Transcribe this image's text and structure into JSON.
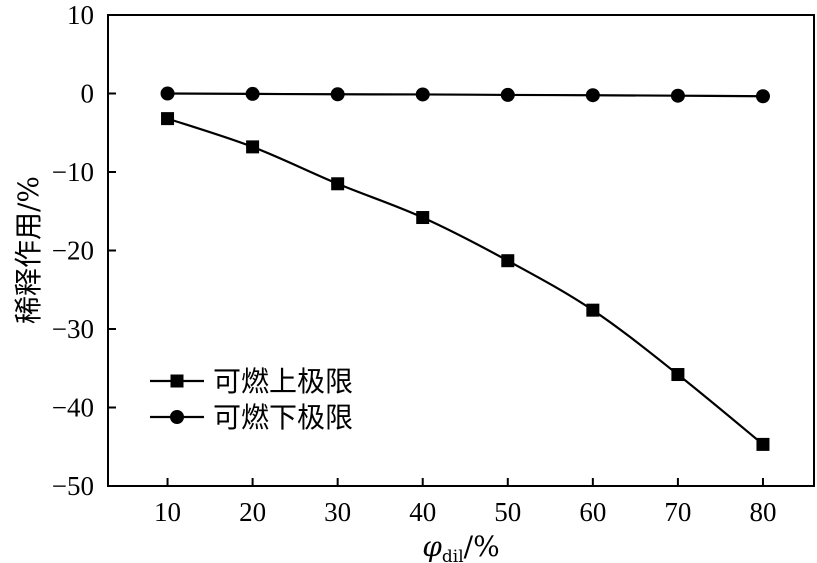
{
  "chart_data": {
    "type": "line",
    "xlabel": {
      "main": "φ",
      "sub": "dil",
      "unit": "/%"
    },
    "ylabel": "稀释作用/%",
    "xlim": [
      3,
      86
    ],
    "ylim": [
      -50,
      10
    ],
    "x": [
      10,
      20,
      30,
      40,
      50,
      60,
      70,
      80
    ],
    "xticks": [
      "10",
      "20",
      "30",
      "40",
      "50",
      "60",
      "70",
      "80"
    ],
    "yticks": [
      "10",
      "0",
      "−10",
      "−20",
      "−30",
      "−40",
      "−50"
    ],
    "ytick_values": [
      10,
      0,
      -10,
      -20,
      -30,
      -40,
      -50
    ],
    "legend_position": "bottom-left",
    "series": [
      {
        "name": "可燃上极限",
        "marker": "square",
        "values": [
          -3.2,
          -6.8,
          -11.5,
          -15.8,
          -21.3,
          -27.6,
          -35.8,
          -44.7
        ]
      },
      {
        "name": "可燃下极限",
        "marker": "circle",
        "values": [
          0.0,
          -0.05,
          -0.1,
          -0.12,
          -0.18,
          -0.22,
          -0.28,
          -0.35
        ]
      }
    ]
  }
}
